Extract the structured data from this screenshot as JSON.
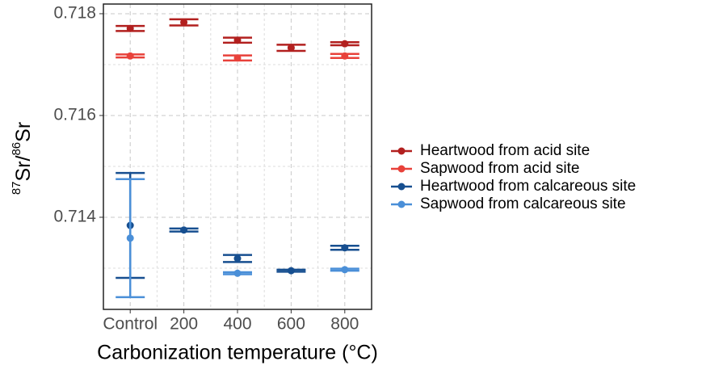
{
  "chart_data": {
    "type": "errorbar",
    "xlabel": "Carbonization temperature (°C)",
    "ylabel": [
      "87",
      "Sr/",
      "86",
      "Sr"
    ],
    "categories": [
      "Control",
      "200",
      "400",
      "600",
      "800"
    ],
    "ylim": [
      0.71219,
      0.71819
    ],
    "yticks": [
      0.714,
      0.716,
      0.718
    ],
    "minor_yticks": [
      0.713,
      0.715,
      0.717
    ],
    "grid": true,
    "legend": "right",
    "series": [
      {
        "name": "Heartwood from acid site",
        "color": "#b2201f",
        "values": [
          0.71771,
          0.71783,
          0.71748,
          0.71733,
          0.71741
        ],
        "errors": [
          5e-05,
          6e-05,
          5e-05,
          6e-05,
          3e-05
        ]
      },
      {
        "name": "Sapwood from acid site",
        "color": "#e8413a",
        "values": [
          0.71717,
          null,
          0.71713,
          null,
          0.71717
        ],
        "errors": [
          3e-05,
          null,
          5e-05,
          null,
          4e-05
        ]
      },
      {
        "name": "Heartwood from calcareous site",
        "color": "#174f90",
        "values": [
          0.71384,
          0.71375,
          0.71319,
          0.71295,
          0.7134
        ],
        "errors": [
          0.00103,
          3e-05,
          7e-05,
          2e-05,
          4e-05
        ]
      },
      {
        "name": "Sapwood from calcareous site",
        "color": "#4a8fd8",
        "values": [
          0.71359,
          null,
          0.7129,
          null,
          0.71297
        ],
        "errors": [
          0.00116,
          null,
          2e-05,
          null,
          2e-05
        ]
      }
    ]
  }
}
